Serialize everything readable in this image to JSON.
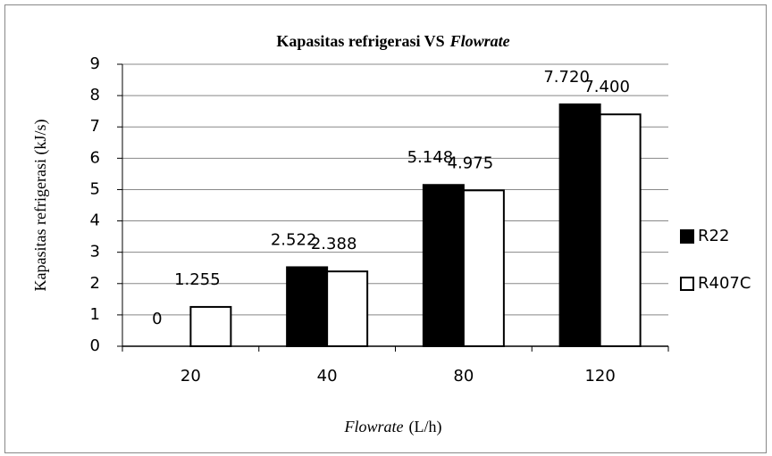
{
  "chart_data": {
    "type": "bar",
    "title": [
      "Kapasitas refrigerasi VS",
      "Flowrate"
    ],
    "title_italic": [
      false,
      true
    ],
    "xlabel": [
      "Flowrate",
      "(L/h)"
    ],
    "xlabel_italic": [
      true,
      false
    ],
    "ylabel": "Kapasitas refrigerasi (kJ/s)",
    "categories": [
      "20",
      "40",
      "80",
      "120"
    ],
    "series": [
      {
        "name": "R22",
        "color": "#000000",
        "values": [
          0,
          2.522,
          5.148,
          7.72
        ],
        "value_labels": [
          "0",
          "2.522",
          "5.148",
          "7.720"
        ]
      },
      {
        "name": "R407C",
        "color": "#ffffff",
        "values": [
          1.255,
          2.388,
          4.975,
          7.4
        ],
        "value_labels": [
          "1.255",
          "2.388",
          "4.975",
          "7.400"
        ]
      }
    ],
    "ylim": [
      0,
      9
    ],
    "yticks": [
      0,
      1,
      2,
      3,
      4,
      5,
      6,
      7,
      8,
      9
    ],
    "grid": true,
    "legend": "right"
  }
}
